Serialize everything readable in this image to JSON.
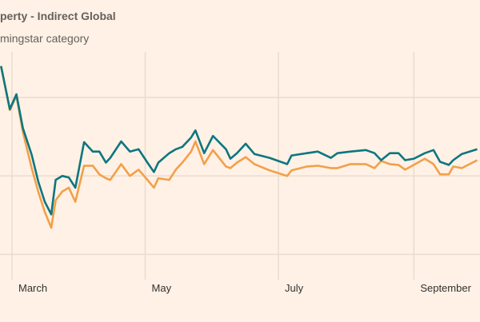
{
  "chart_data": {
    "type": "line",
    "title": "perty - Indirect Global",
    "subtitle": "mingstar category",
    "x_tick_labels": [
      "March",
      "May",
      "July",
      "September"
    ],
    "x_ticks": [
      "03-01",
      "05-01",
      "07-01",
      "09-01"
    ],
    "y_tick_labels": [],
    "y_gridlines": [
      -1,
      0,
      1
    ],
    "ylim": [
      -1.22,
      1.58
    ],
    "grid": true,
    "x": [
      "02-24",
      "02-28",
      "03-03",
      "03-06",
      "03-10",
      "03-13",
      "03-16",
      "03-19",
      "03-21",
      "03-24",
      "03-27",
      "03-30",
      "04-03",
      "04-07",
      "04-10",
      "04-13",
      "04-15",
      "04-20",
      "04-24",
      "04-28",
      "05-02",
      "05-05",
      "05-07",
      "05-12",
      "05-15",
      "05-18",
      "05-22",
      "05-24",
      "05-28",
      "06-01",
      "06-07",
      "06-09",
      "06-12",
      "06-16",
      "06-20",
      "06-27",
      "07-05",
      "07-07",
      "07-14",
      "07-19",
      "07-25",
      "07-28",
      "08-03",
      "08-10",
      "08-14",
      "08-17",
      "08-21",
      "08-25",
      "08-28",
      "09-01",
      "09-06",
      "09-10",
      "09-13",
      "09-17",
      "09-19",
      "09-23",
      "09-30"
    ],
    "series": [
      {
        "color": "#0d7680",
        "values": [
          1.4,
          0.85,
          1.04,
          0.61,
          0.27,
          -0.07,
          -0.33,
          -0.49,
          -0.05,
          0,
          -0.02,
          -0.15,
          0.43,
          0.31,
          0.31,
          0.17,
          0.23,
          0.44,
          0.31,
          0.34,
          0.17,
          0.05,
          0.17,
          0.29,
          0.34,
          0.37,
          0.49,
          0.58,
          0.29,
          0.51,
          0.34,
          0.22,
          0.29,
          0.41,
          0.28,
          0.23,
          0.15,
          0.26,
          0.29,
          0.31,
          0.23,
          0.29,
          0.31,
          0.33,
          0.29,
          0.2,
          0.29,
          0.29,
          0.2,
          0.22,
          0.29,
          0.33,
          0.18,
          0.14,
          0.2,
          0.28,
          0.34
        ]
      },
      {
        "color": "#f2a04a",
        "values": [
          1.4,
          0.84,
          1.02,
          0.56,
          0.1,
          -0.2,
          -0.46,
          -0.66,
          -0.31,
          -0.2,
          -0.15,
          -0.33,
          0.13,
          0.13,
          0.02,
          -0.03,
          -0.05,
          0.15,
          0,
          0.08,
          -0.05,
          -0.15,
          -0.03,
          -0.05,
          0.08,
          0.17,
          0.31,
          0.44,
          0.15,
          0.33,
          0.12,
          0.1,
          0.17,
          0.24,
          0.15,
          0.07,
          0,
          0.07,
          0.12,
          0.13,
          0.1,
          0.1,
          0.15,
          0.15,
          0.1,
          0.19,
          0.15,
          0.14,
          0.08,
          0.14,
          0.22,
          0.15,
          0.02,
          0.02,
          0.12,
          0.1,
          0.2
        ]
      }
    ]
  },
  "colors": {
    "background": "#fff1e5",
    "grid": "#eadccd"
  }
}
